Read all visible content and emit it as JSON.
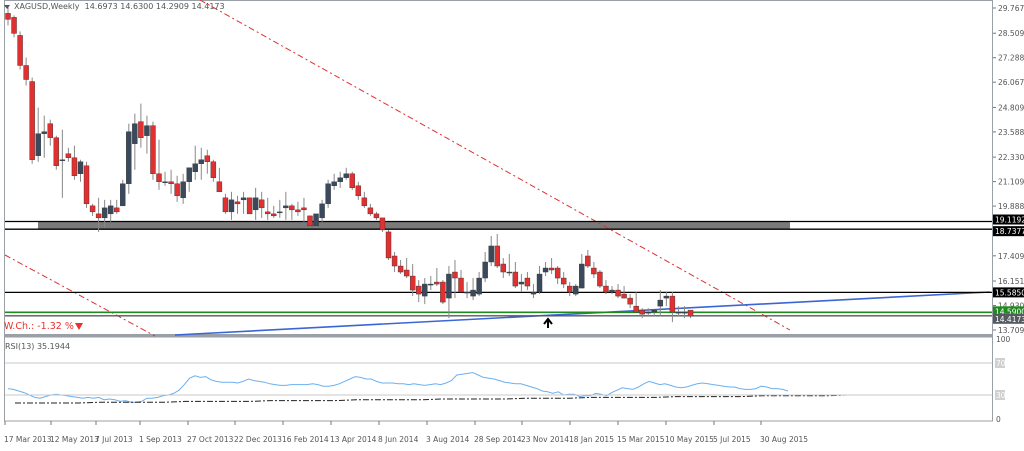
{
  "header": {
    "symbol": "XAGUSD,Weekly",
    "ohlc": "14.6973 14.6300 14.2909 14.4173"
  },
  "annotation": {
    "weekly_change": "W.Ch.: -1.32 %",
    "arrow_icon": "up-arrow-icon"
  },
  "rsi_panel": {
    "label": "RSI(13) 35.1944",
    "axis_labels": [
      "100",
      "70",
      "30",
      "0"
    ]
  },
  "price_axis": {
    "ticks": [
      "29.7670",
      "28.5090",
      "27.2880",
      "26.0670",
      "24.8090",
      "23.5880",
      "22.3300",
      "21.1090",
      "19.8880",
      "17.4090",
      "16.1510",
      "14.9300",
      "13.7090"
    ],
    "badges": [
      {
        "label": "19.1192",
        "bg": "#000000",
        "fg": "#ffffff"
      },
      {
        "label": "18.7377",
        "bg": "#000000",
        "fg": "#ffffff"
      },
      {
        "label": "15.5850",
        "bg": "#000000",
        "fg": "#ffffff"
      },
      {
        "label": "14.5900",
        "bg": "#1f8a1f",
        "fg": "#ffffff"
      },
      {
        "label": "14.4173",
        "bg": "#555a60",
        "fg": "#ffffff"
      }
    ]
  },
  "time_axis": {
    "labels": [
      "17 Mar 2013",
      "12 May 2013",
      "7 Jul 2013",
      "1 Sep 2013",
      "27 Oct 2013",
      "22 Dec 2013",
      "16 Feb 2014",
      "13 Apr 2014",
      "8 Jun 2014",
      "3 Aug 2014",
      "28 Sep 2014",
      "23 Nov 2014",
      "18 Jan 2015",
      "15 Mar 2015",
      "10 May 2015",
      "5 Jul 2015",
      "30 Aug 2015"
    ]
  },
  "colors": {
    "bull": "#3a4a5c",
    "bear": "#e03030",
    "wick": "#888888",
    "trend_red": "#e03030",
    "trend_blue": "#3a66d6",
    "support_green": "#1f8a1f",
    "zone_gray": "#7a7a7a",
    "rsi_line": "#6ab0f0"
  },
  "chart_data": {
    "type": "candlestick",
    "title": "XAGUSD,Weekly",
    "xlabel": "",
    "ylabel": "",
    "ylim": [
      13.709,
      29.767
    ],
    "x_tick_labels": [
      "17 Mar 2013",
      "12 May 2013",
      "7 Jul 2013",
      "1 Sep 2013",
      "27 Oct 2013",
      "22 Dec 2013",
      "16 Feb 2014",
      "13 Apr 2014",
      "8 Jun 2014",
      "3 Aug 2014",
      "28 Sep 2014",
      "23 Nov 2014",
      "18 Jan 2015",
      "15 Mar 2015",
      "10 May 2015",
      "5 Jul 2015",
      "30 Aug 2015"
    ],
    "y_tick_labels": [
      "29.7670",
      "28.5090",
      "27.2880",
      "26.0670",
      "24.8090",
      "23.5880",
      "22.3300",
      "21.1090",
      "19.8880",
      "17.4090",
      "16.1510",
      "14.9300",
      "13.7090"
    ],
    "last_ohlc": {
      "open": 14.6973,
      "high": 14.63,
      "low": 14.2909,
      "close": 14.4173
    },
    "candles": [
      [
        29.5,
        29.9,
        28.9,
        29.2
      ],
      [
        29.3,
        29.4,
        28.3,
        28.5
      ],
      [
        28.4,
        28.6,
        26.7,
        26.9
      ],
      [
        26.9,
        27.3,
        25.9,
        26.2
      ],
      [
        26.1,
        26.3,
        22.0,
        22.2
      ],
      [
        22.4,
        24.8,
        22.1,
        23.5
      ],
      [
        23.5,
        24.4,
        22.3,
        23.6
      ],
      [
        24.0,
        24.2,
        22.9,
        23.3
      ],
      [
        23.3,
        23.4,
        21.7,
        21.9
      ],
      [
        22.2,
        23.7,
        20.3,
        22.2
      ],
      [
        22.5,
        22.8,
        22.1,
        22.3
      ],
      [
        22.3,
        22.9,
        21.2,
        21.4
      ],
      [
        21.5,
        22.2,
        21.1,
        22.1
      ],
      [
        21.9,
        22.1,
        19.8,
        20.0
      ],
      [
        19.9,
        20.0,
        19.4,
        19.6
      ],
      [
        19.5,
        20.3,
        18.6,
        19.3
      ],
      [
        19.3,
        20.2,
        18.8,
        19.8
      ],
      [
        19.5,
        20.2,
        19.1,
        19.9
      ],
      [
        19.8,
        20.2,
        19.5,
        19.6
      ],
      [
        19.9,
        21.2,
        19.9,
        21.0
      ],
      [
        21.0,
        24.0,
        20.5,
        23.6
      ],
      [
        23.0,
        24.5,
        21.7,
        24.0
      ],
      [
        24.1,
        25.0,
        22.8,
        23.3
      ],
      [
        23.4,
        24.4,
        22.5,
        23.9
      ],
      [
        23.9,
        24.1,
        21.2,
        21.5
      ],
      [
        21.5,
        23.2,
        20.7,
        21.1
      ],
      [
        21.1,
        21.6,
        20.9,
        21.1
      ],
      [
        21.1,
        21.7,
        20.5,
        21.0
      ],
      [
        21.0,
        21.4,
        20.1,
        20.4
      ],
      [
        20.3,
        21.5,
        20.0,
        21.1
      ],
      [
        21.1,
        21.8,
        20.6,
        21.8
      ],
      [
        21.6,
        22.9,
        21.2,
        22.0
      ],
      [
        22.0,
        22.8,
        21.2,
        22.2
      ],
      [
        22.4,
        22.7,
        21.5,
        22.1
      ],
      [
        22.1,
        22.2,
        21.1,
        21.3
      ],
      [
        21.1,
        21.8,
        20.6,
        20.6
      ],
      [
        20.3,
        20.5,
        19.5,
        19.6
      ],
      [
        19.6,
        20.6,
        19.2,
        20.2
      ],
      [
        20.1,
        20.4,
        19.5,
        20.0
      ],
      [
        20.2,
        20.6,
        19.5,
        20.3
      ],
      [
        20.3,
        20.3,
        19.5,
        19.5
      ],
      [
        19.7,
        20.8,
        19.2,
        20.3
      ],
      [
        20.2,
        20.6,
        19.3,
        19.8
      ],
      [
        19.6,
        20.3,
        19.2,
        19.5
      ],
      [
        19.5,
        19.9,
        19.3,
        19.4
      ],
      [
        19.6,
        20.2,
        19.3,
        19.6
      ],
      [
        19.8,
        20.6,
        19.2,
        19.9
      ],
      [
        19.9,
        20.0,
        19.2,
        19.7
      ],
      [
        19.7,
        20.1,
        19.4,
        19.6
      ],
      [
        19.8,
        20.3,
        19.1,
        19.7
      ],
      [
        19.4,
        19.4,
        18.8,
        18.9
      ],
      [
        18.9,
        19.5,
        18.8,
        19.5
      ],
      [
        19.3,
        20.2,
        19.1,
        20.0
      ],
      [
        20.0,
        21.2,
        19.8,
        21.0
      ],
      [
        20.9,
        21.5,
        20.7,
        21.1
      ],
      [
        21.1,
        21.6,
        20.8,
        21.3
      ],
      [
        21.3,
        21.8,
        21.2,
        21.5
      ],
      [
        21.5,
        21.6,
        20.7,
        20.8
      ],
      [
        20.9,
        21.1,
        20.2,
        20.4
      ],
      [
        20.3,
        20.6,
        19.8,
        19.9
      ],
      [
        19.8,
        20.0,
        19.4,
        19.5
      ],
      [
        19.5,
        19.6,
        19.2,
        19.3
      ],
      [
        19.3,
        19.3,
        18.6,
        18.7
      ],
      [
        18.6,
        18.7,
        17.2,
        17.3
      ],
      [
        17.4,
        17.6,
        16.6,
        16.9
      ],
      [
        16.9,
        17.2,
        16.5,
        16.6
      ],
      [
        16.7,
        17.3,
        16.3,
        16.4
      ],
      [
        16.4,
        17.0,
        15.4,
        15.7
      ],
      [
        15.9,
        16.2,
        15.1,
        15.5
      ],
      [
        15.4,
        16.3,
        15.0,
        16.0
      ],
      [
        16.0,
        16.4,
        15.7,
        16.0
      ],
      [
        16.1,
        16.8,
        15.9,
        16.0
      ],
      [
        16.1,
        16.2,
        15.0,
        15.1
      ],
      [
        15.3,
        16.9,
        14.3,
        16.5
      ],
      [
        16.6,
        17.2,
        15.3,
        16.3
      ],
      [
        16.3,
        16.7,
        15.6,
        15.6
      ],
      [
        15.6,
        16.1,
        15.3,
        15.6
      ],
      [
        15.4,
        16.3,
        15.2,
        15.7
      ],
      [
        15.5,
        16.6,
        15.4,
        16.3
      ],
      [
        16.3,
        17.6,
        16.1,
        17.1
      ],
      [
        17.1,
        18.4,
        16.9,
        17.9
      ],
      [
        17.9,
        18.5,
        16.8,
        16.9
      ],
      [
        17.0,
        17.3,
        16.3,
        16.6
      ],
      [
        16.6,
        17.5,
        16.4,
        16.6
      ],
      [
        16.6,
        17.1,
        15.8,
        15.9
      ],
      [
        16.0,
        16.5,
        15.6,
        16.1
      ],
      [
        16.3,
        16.6,
        15.7,
        15.9
      ],
      [
        15.5,
        16.0,
        15.3,
        15.6
      ],
      [
        15.6,
        16.9,
        15.5,
        16.5
      ],
      [
        16.6,
        17.1,
        16.4,
        16.8
      ],
      [
        16.8,
        17.3,
        16.5,
        16.7
      ],
      [
        16.8,
        16.9,
        16.0,
        16.3
      ],
      [
        16.3,
        16.6,
        15.8,
        16.0
      ],
      [
        15.9,
        16.1,
        15.4,
        15.6
      ],
      [
        15.5,
        16.0,
        15.4,
        15.9
      ],
      [
        15.8,
        17.5,
        15.8,
        17.0
      ],
      [
        17.4,
        17.7,
        16.8,
        16.9
      ],
      [
        16.8,
        17.1,
        16.3,
        16.5
      ],
      [
        16.6,
        16.7,
        15.8,
        15.9
      ],
      [
        15.9,
        16.2,
        15.5,
        15.6
      ],
      [
        15.6,
        15.9,
        15.5,
        15.7
      ],
      [
        15.7,
        16.0,
        15.3,
        15.4
      ],
      [
        15.5,
        15.9,
        15.3,
        15.3
      ],
      [
        15.3,
        15.5,
        14.8,
        15.0
      ],
      [
        14.9,
        15.6,
        14.6,
        14.6
      ],
      [
        14.7,
        14.8,
        14.3,
        14.5
      ],
      [
        14.6,
        14.8,
        14.4,
        14.6
      ],
      [
        14.6,
        14.7,
        14.4,
        14.7
      ],
      [
        14.9,
        15.7,
        14.4,
        15.2
      ],
      [
        15.3,
        15.6,
        14.9,
        15.4
      ],
      [
        15.4,
        15.6,
        14.1,
        14.6
      ],
      [
        14.6,
        14.9,
        14.4,
        14.6
      ],
      [
        14.6,
        14.9,
        14.3,
        14.6
      ],
      [
        14.7,
        14.6,
        14.3,
        14.4
      ]
    ],
    "horizontal_levels": [
      {
        "value": 19.1192,
        "color": "#000000"
      },
      {
        "value": 18.7377,
        "color": "#000000"
      },
      {
        "value": 15.585,
        "color": "#000000"
      },
      {
        "value": 14.59,
        "color": "#1f8a1f"
      },
      {
        "value": 14.4173,
        "color": "#555a60"
      }
    ],
    "zone": {
      "from": 18.7377,
      "to": 19.1192,
      "color": "#7a7a7a"
    },
    "rsi": {
      "period": 13,
      "last": 35.1944,
      "levels": [
        70,
        30
      ],
      "values": [
        38,
        37,
        35,
        33,
        30,
        27,
        26,
        28,
        30,
        31,
        30,
        29,
        28,
        27,
        26,
        27,
        26,
        27,
        24,
        25,
        24,
        22,
        23,
        21,
        21,
        22,
        26,
        26,
        27,
        29,
        30,
        32,
        36,
        43,
        51,
        54,
        52,
        53,
        49,
        47,
        46,
        46,
        46,
        45,
        47,
        50,
        48,
        47,
        46,
        44,
        43,
        42,
        42,
        43,
        43,
        43,
        43,
        44,
        43,
        41,
        41,
        42,
        44,
        47,
        50,
        53,
        52,
        50,
        50,
        47,
        45,
        45,
        45,
        44,
        44,
        43,
        44,
        43,
        42,
        43,
        44,
        43,
        45,
        48,
        55,
        56,
        57,
        58,
        55,
        52,
        51,
        50,
        48,
        46,
        45,
        44,
        44,
        42,
        40,
        38,
        35,
        34,
        32,
        34,
        30,
        31,
        31,
        28,
        29,
        29,
        32,
        31,
        29,
        33,
        36,
        39,
        38,
        37,
        40,
        44,
        47,
        45,
        43,
        44,
        42,
        40,
        39,
        40,
        42,
        44,
        45,
        44,
        43,
        42,
        41,
        40,
        40,
        38,
        37,
        37,
        38,
        41,
        40,
        38,
        38,
        37,
        35
      ],
      "ma_values": [
        20,
        20,
        20,
        20,
        21,
        21,
        21,
        21,
        22,
        22,
        22,
        22,
        23,
        23,
        23,
        23,
        24,
        24,
        24,
        24,
        25,
        25,
        25,
        25,
        26,
        26,
        26,
        27,
        27,
        27,
        27,
        28,
        28,
        28,
        28,
        29,
        29,
        29,
        29,
        30,
        30,
        30
      ],
      "ylim": [
        0,
        100
      ]
    }
  }
}
